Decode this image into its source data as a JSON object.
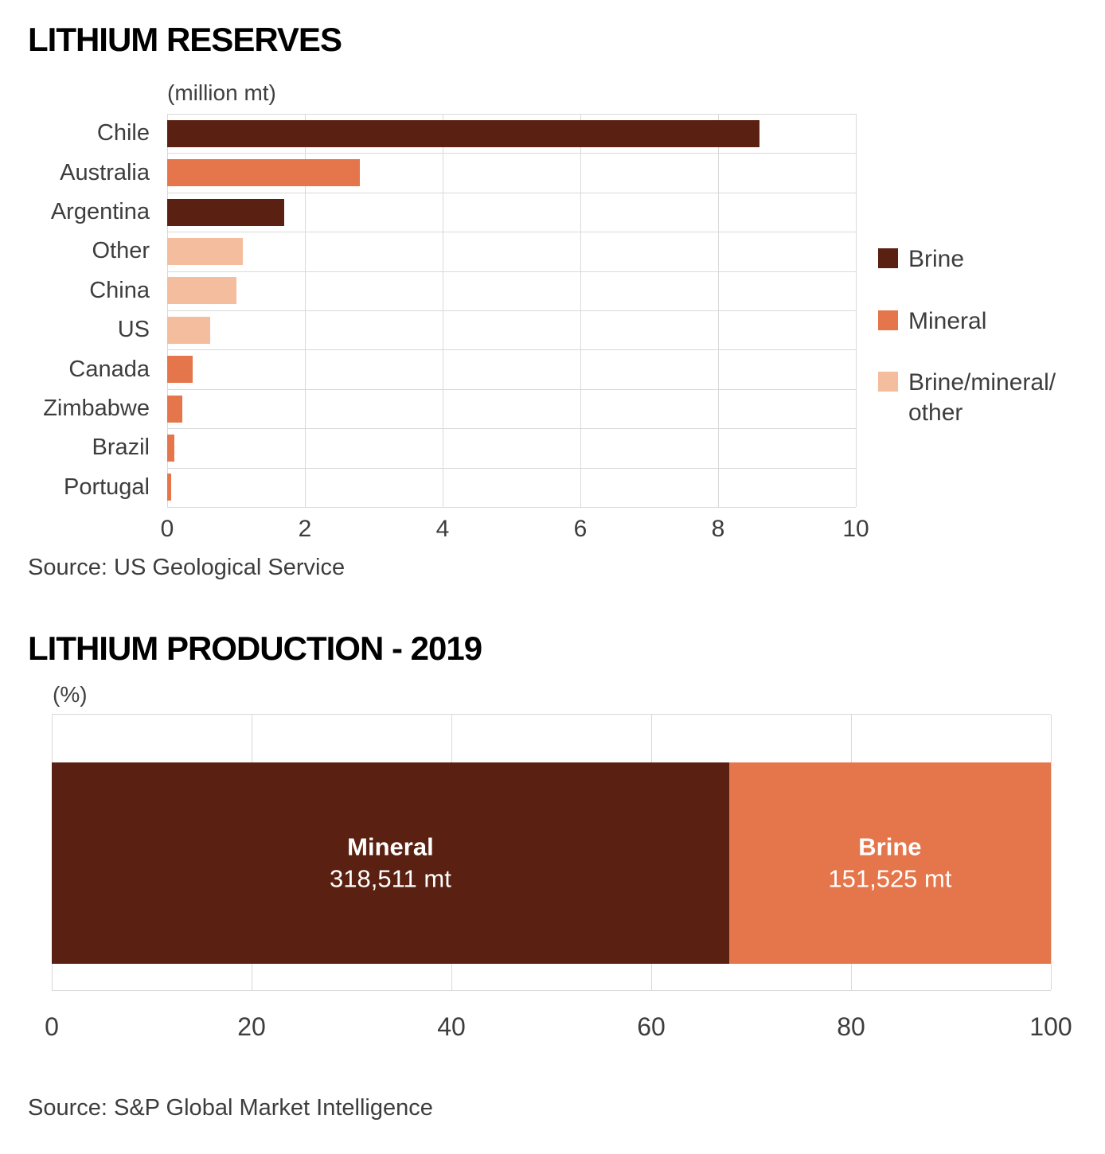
{
  "colors": {
    "brine": "#5a2112",
    "mineral": "#e5764b",
    "brine_mineral_other": "#f4bd9d",
    "grid": "#d9d9d9",
    "text": "#3d3d3d",
    "title": "#000000",
    "background": "#ffffff",
    "bar_text": "#ffffff"
  },
  "chart_data": [
    {
      "type": "bar",
      "orientation": "horizontal",
      "title": "LITHIUM RESERVES",
      "unit_label": "(million mt)",
      "source": "Source: US Geological Service",
      "categories": [
        "Chile",
        "Australia",
        "Argentina",
        "Other",
        "China",
        "US",
        "Canada",
        "Zimbabwe",
        "Brazil",
        "Portugal"
      ],
      "values": [
        8.6,
        2.8,
        1.7,
        1.1,
        1.0,
        0.63,
        0.37,
        0.22,
        0.1,
        0.06
      ],
      "types": [
        "Brine",
        "Mineral",
        "Brine",
        "Brine/mineral/other",
        "Brine/mineral/other",
        "Brine/mineral/other",
        "Mineral",
        "Mineral",
        "Mineral",
        "Mineral"
      ],
      "xlim": [
        0,
        10
      ],
      "xticks": [
        0,
        2,
        4,
        6,
        8,
        10
      ],
      "grid": true,
      "legend_position": "right",
      "legend": [
        {
          "label": "Brine",
          "label_display": "Brine",
          "color": "#5a2112"
        },
        {
          "label": "Mineral",
          "label_display": "Mineral",
          "color": "#e5764b"
        },
        {
          "label": "Brine/mineral/other",
          "label_display": "Brine/mineral/\nother",
          "color": "#f4bd9d"
        }
      ]
    },
    {
      "type": "stacked-bar",
      "orientation": "horizontal",
      "title": "LITHIUM PRODUCTION - 2019",
      "unit_label": "(%)",
      "source": "Source: S&P Global Market Intelligence",
      "xlim": [
        0,
        100
      ],
      "xticks": [
        0,
        20,
        40,
        60,
        80,
        100
      ],
      "grid": true,
      "segments": [
        {
          "label": "Mineral",
          "value_label": "318,511 mt",
          "percent": 67.8,
          "color": "#5a2112",
          "text_color": "#ffffff"
        },
        {
          "label": "Brine",
          "value_label": "151,525 mt",
          "percent": 32.2,
          "color": "#e5764b",
          "text_color": "#ffffff"
        }
      ]
    }
  ]
}
